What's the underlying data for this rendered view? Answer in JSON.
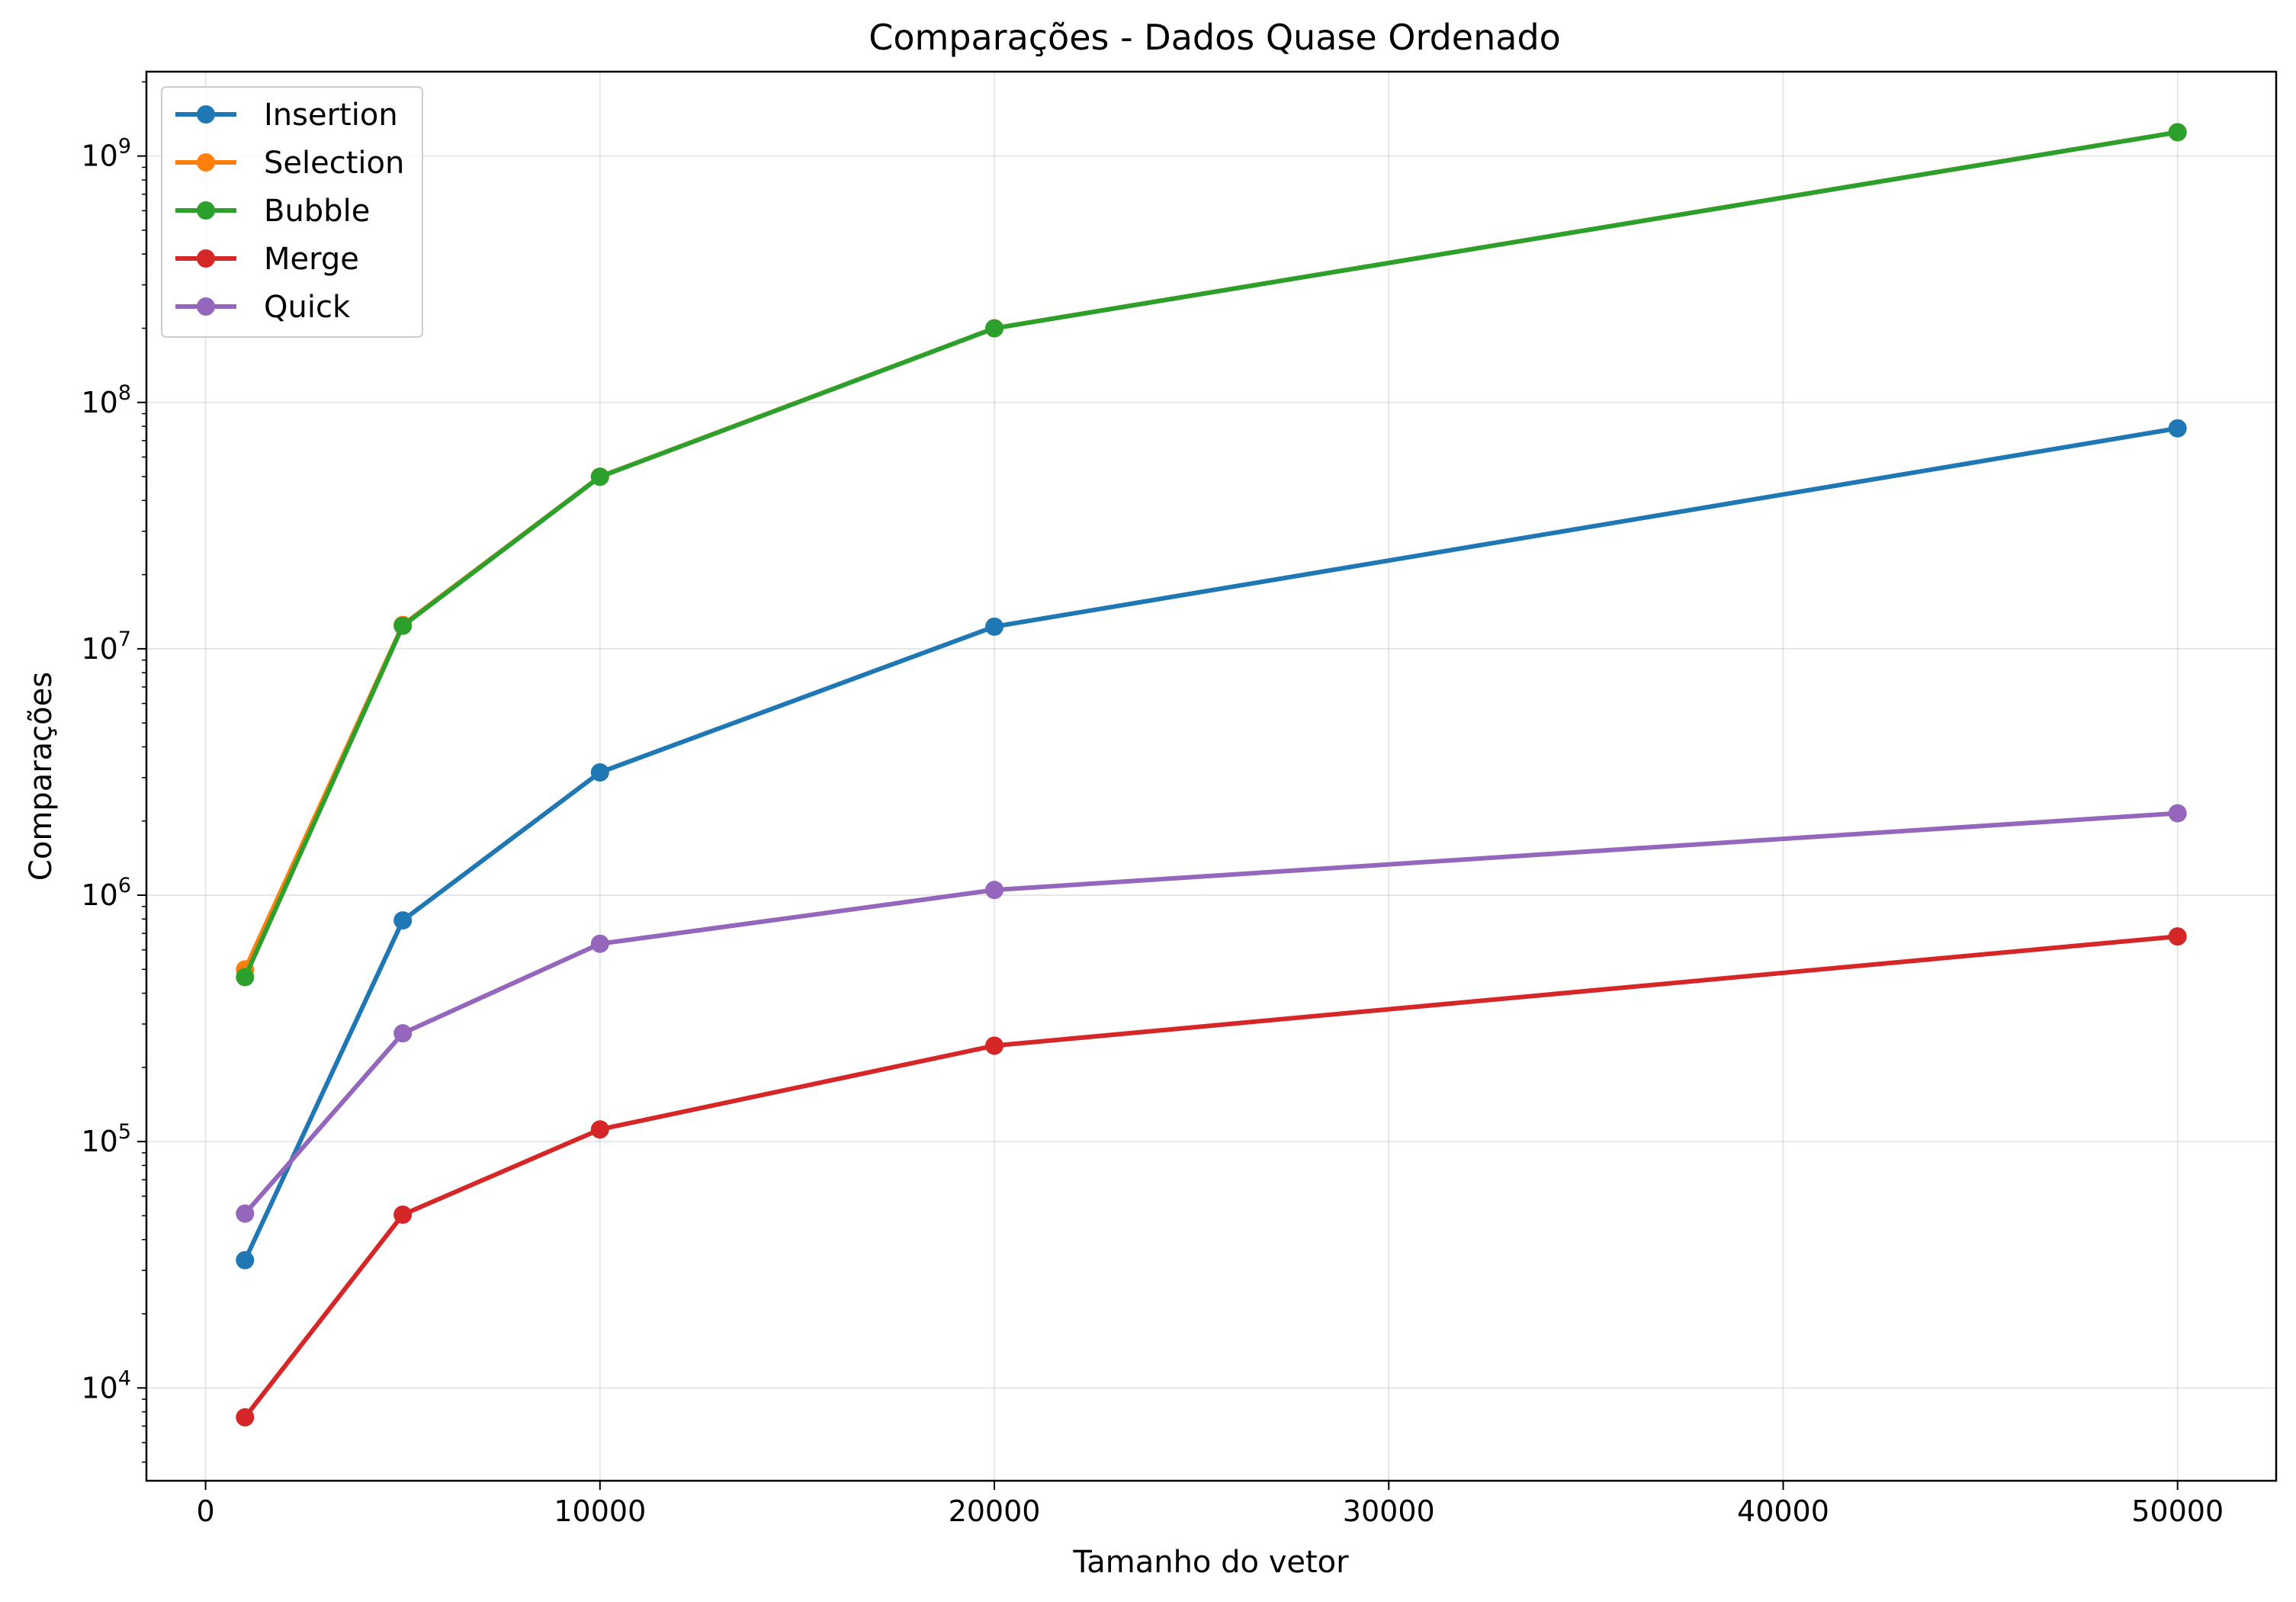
{
  "chart_data": {
    "type": "line",
    "title": "Comparações - Dados Quase Ordenado",
    "xlabel": "Tamanho do vetor",
    "ylabel": "Comparações",
    "x": [
      1000,
      5000,
      10000,
      20000,
      50000
    ],
    "xlim": [
      -1500,
      52500
    ],
    "xticks": [
      0,
      10000,
      20000,
      30000,
      40000,
      50000
    ],
    "xtick_labels": [
      "0",
      "10000",
      "20000",
      "30000",
      "40000",
      "50000"
    ],
    "yscale": "log",
    "ylim": [
      4200,
      2200000000
    ],
    "yticks": [
      10000,
      100000,
      1000000,
      10000000,
      100000000,
      1000000000
    ],
    "ytick_labels": [
      {
        "base": "10",
        "exp": "4"
      },
      {
        "base": "10",
        "exp": "5"
      },
      {
        "base": "10",
        "exp": "6"
      },
      {
        "base": "10",
        "exp": "7"
      },
      {
        "base": "10",
        "exp": "8"
      },
      {
        "base": "10",
        "exp": "9"
      }
    ],
    "grid": true,
    "legend_position": "top-left",
    "series": [
      {
        "name": "Insertion",
        "color": "#1f77b4",
        "values": [
          33000,
          790000,
          3150000,
          12300000,
          78500000
        ]
      },
      {
        "name": "Selection",
        "color": "#ff7f0e",
        "values": [
          499500,
          12497500,
          49995000,
          199990000,
          1249975000
        ]
      },
      {
        "name": "Bubble",
        "color": "#2ca02c",
        "values": [
          465000,
          12400000,
          49900000,
          199900000,
          1249000000
        ]
      },
      {
        "name": "Merge",
        "color": "#d62728",
        "values": [
          7600,
          50500,
          112000,
          245000,
          680000
        ]
      },
      {
        "name": "Quick",
        "color": "#9467bd",
        "values": [
          51000,
          275000,
          635000,
          1050000,
          2150000
        ]
      }
    ]
  }
}
